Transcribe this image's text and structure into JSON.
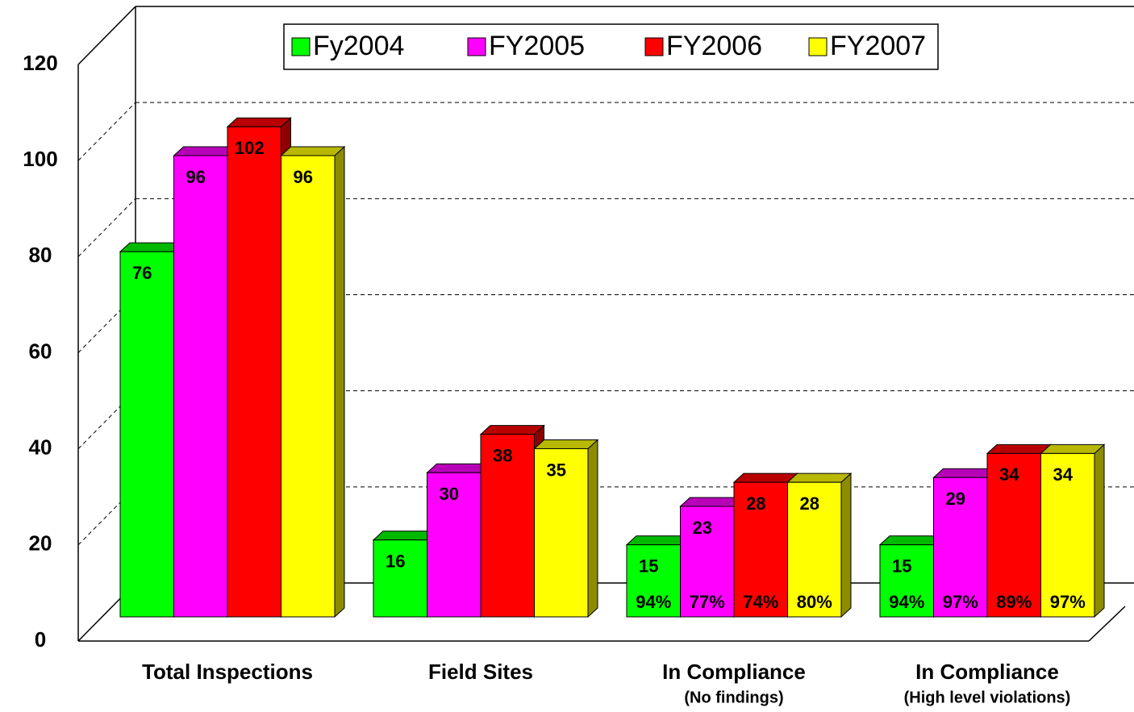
{
  "chart_data": {
    "type": "bar3d",
    "categories": [
      "Total Inspections",
      "Field Sites",
      "In Compliance",
      "In Compliance"
    ],
    "category_sublabels": [
      null,
      null,
      "(No findings)",
      "(High level violations)"
    ],
    "series": [
      {
        "name": "Fy2004",
        "color": "#00ff00",
        "values": [
          76,
          16,
          15,
          15
        ],
        "percents": [
          null,
          null,
          94,
          94
        ],
        "percent_labels": [
          null,
          null,
          "94%",
          "94%"
        ]
      },
      {
        "name": "FY2005",
        "color": "#ff00ff",
        "values": [
          96,
          30,
          23,
          29
        ],
        "percents": [
          null,
          null,
          77,
          97
        ],
        "percent_labels": [
          null,
          null,
          "77%",
          "97%"
        ]
      },
      {
        "name": "FY2006",
        "color": "#ff0000",
        "values": [
          102,
          38,
          28,
          34
        ],
        "percents": [
          null,
          null,
          74,
          89
        ],
        "percent_labels": [
          null,
          null,
          "74%",
          "89%"
        ]
      },
      {
        "name": "FY2007",
        "color": "#ffff00",
        "values": [
          96,
          35,
          28,
          34
        ],
        "percents": [
          null,
          null,
          80,
          97
        ],
        "percent_labels": [
          null,
          null,
          "80%",
          "97%"
        ]
      }
    ],
    "ylim": [
      0,
      120
    ],
    "yticks": [
      0,
      20,
      40,
      60,
      80,
      100,
      120
    ],
    "grid": true,
    "legend": "top"
  }
}
